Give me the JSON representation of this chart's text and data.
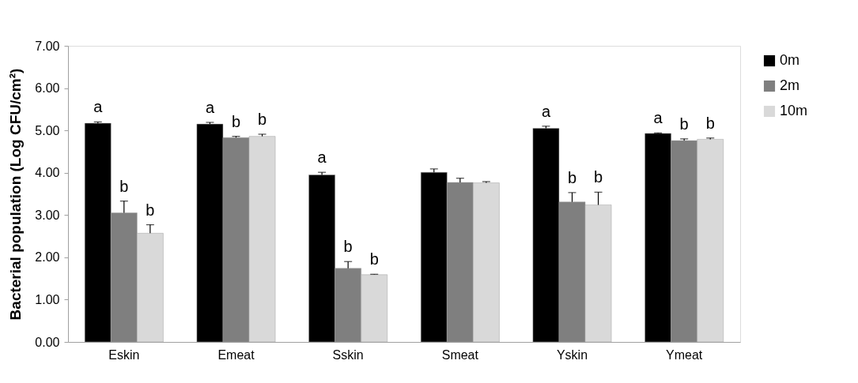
{
  "chart_data": {
    "type": "bar",
    "ylabel": "Bacterial population (Log  CFU/cm²)",
    "categories": [
      "Eskin",
      "Emeat",
      "Sskin",
      "Smeat",
      "Yskin",
      "Ymeat"
    ],
    "series": [
      {
        "name": "0m",
        "color": "#000000",
        "values": [
          5.17,
          5.15,
          3.95,
          4.01,
          5.05,
          4.93
        ],
        "errors": [
          0.03,
          0.04,
          0.06,
          0.08,
          0.05,
          0.01
        ],
        "value_labels": [
          "a",
          "a",
          "a",
          null,
          "a",
          "a"
        ]
      },
      {
        "name": "2m",
        "color": "#7f7f7f",
        "values": [
          3.05,
          4.83,
          1.74,
          3.77,
          3.31,
          4.76
        ],
        "errors": [
          0.28,
          0.03,
          0.16,
          0.1,
          0.22,
          0.04
        ],
        "value_labels": [
          "b",
          "b",
          "b",
          null,
          "b",
          "b"
        ]
      },
      {
        "name": "10m",
        "color": "#d9d9d9",
        "values": [
          2.57,
          4.86,
          1.59,
          3.76,
          3.24,
          4.79
        ],
        "errors": [
          0.2,
          0.05,
          0.01,
          0.03,
          0.3,
          0.03
        ],
        "value_labels": [
          "b",
          "b",
          "b",
          null,
          "b",
          "b"
        ]
      }
    ],
    "ylim": [
      0,
      7
    ],
    "yticks": [
      {
        "value": 0,
        "label": "0.00"
      },
      {
        "value": 1,
        "label": "1.00"
      },
      {
        "value": 2,
        "label": "2.00"
      },
      {
        "value": 3,
        "label": "3.00"
      },
      {
        "value": 4,
        "label": "4.00"
      },
      {
        "value": 5,
        "label": "5.00"
      },
      {
        "value": 6,
        "label": "6.00"
      },
      {
        "value": 7,
        "label": "7.00"
      }
    ],
    "grid": false,
    "legend": "right"
  }
}
